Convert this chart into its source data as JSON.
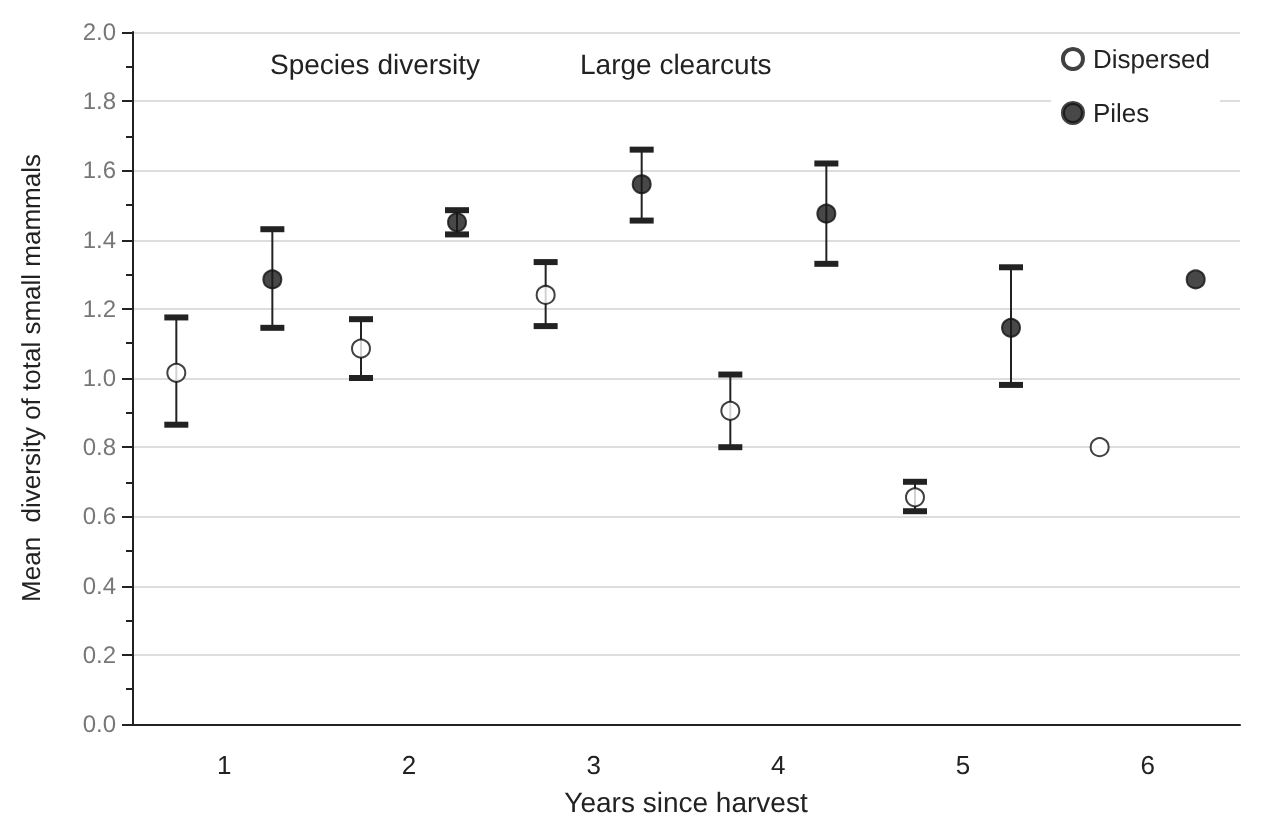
{
  "chart_data": {
    "type": "scatter",
    "xlabel": "Years since harvest",
    "ylabel": "Mean  diversity of total small mammals",
    "annotations": [
      "Species diversity",
      "Large clearcuts"
    ],
    "categories": [
      "1",
      "2",
      "3",
      "4",
      "5",
      "6"
    ],
    "series": [
      {
        "name": "Dispersed",
        "color": "#ffffff",
        "values": [
          1.015,
          1.085,
          1.24,
          0.905,
          0.655,
          0.8
        ],
        "errors": [
          [
            0.865,
            1.175
          ],
          [
            1.0,
            1.17
          ],
          [
            1.15,
            1.335
          ],
          [
            0.8,
            1.01
          ],
          [
            0.615,
            0.7
          ],
          null
        ]
      },
      {
        "name": "Piles",
        "color": "#1a1a1a",
        "values": [
          1.285,
          1.45,
          1.56,
          1.475,
          1.145,
          1.285
        ],
        "errors": [
          [
            1.145,
            1.43
          ],
          [
            1.415,
            1.485
          ],
          [
            1.455,
            1.66
          ],
          [
            1.33,
            1.62
          ],
          [
            0.98,
            1.32
          ],
          null
        ]
      }
    ],
    "ylim": [
      0,
      2
    ],
    "yticks": [
      {
        "value": 0,
        "label": "0.0"
      },
      0.2,
      0.4,
      0.6,
      0.8,
      {
        "value": 1,
        "label": "1.0"
      },
      1.2,
      1.4,
      1.6,
      1.8,
      {
        "value": 2,
        "label": "2.0"
      }
    ],
    "grid": "y",
    "legend": "top right",
    "marker": "circle"
  }
}
